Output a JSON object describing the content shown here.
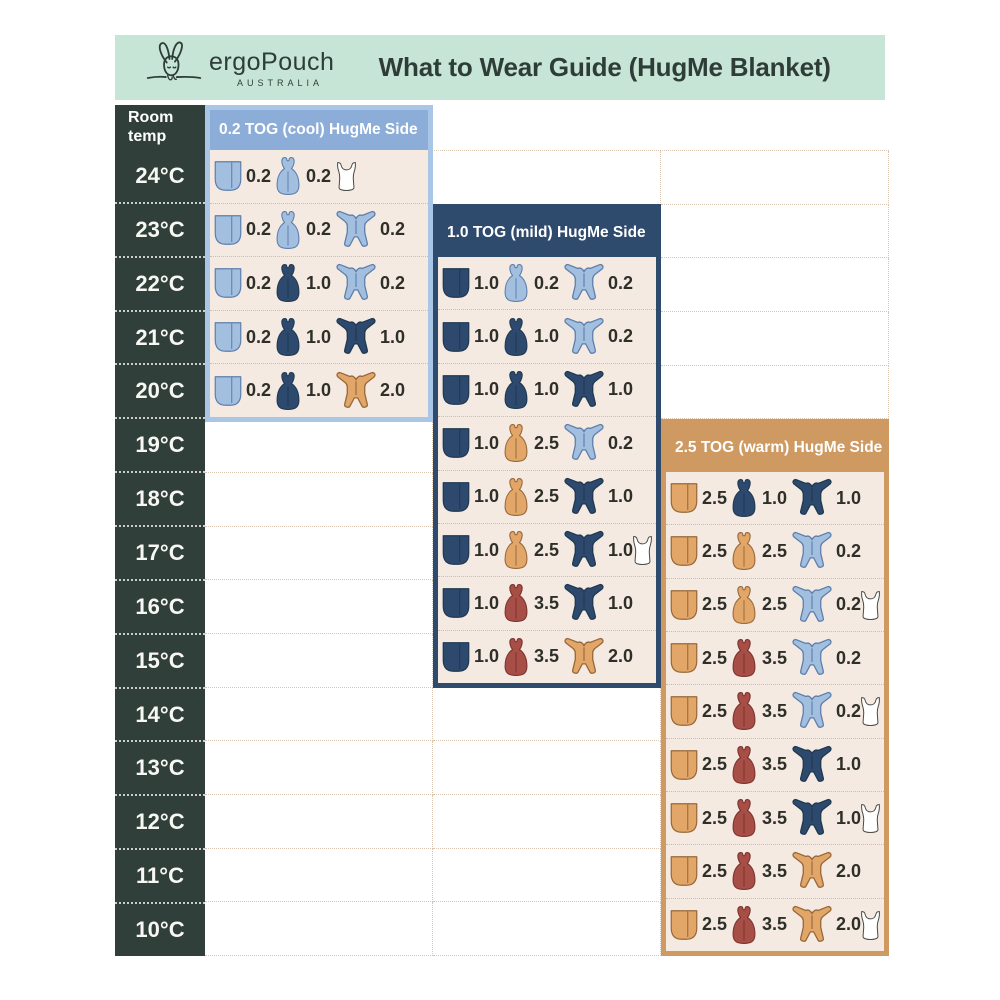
{
  "brand": {
    "name": "ergoPouch",
    "country": "AUSTRALIA"
  },
  "colors": {
    "mint_header_bg": "#c7e5d6",
    "ink": "#2e3d38",
    "column_bg": "#313f3a",
    "panel_body_bg": "#f5eae1",
    "tog_text": "#2f2f2a",
    "garments": {
      "lightblue": {
        "fill": "#a3bfe0",
        "stroke": "#5d7fac"
      },
      "navy": {
        "fill": "#2d4a6e",
        "stroke": "#203850"
      },
      "tan": {
        "fill": "#e2a668",
        "stroke": "#97683a"
      },
      "red": {
        "fill": "#a74e47",
        "stroke": "#7c332e"
      },
      "white": {
        "fill": "#ffffff",
        "stroke": "#4b4b45"
      }
    }
  },
  "chart_data": {
    "type": "table",
    "title": "What to Wear Guide (HugMe Blanket)",
    "row_header": "Room temp",
    "temps": [
      "24°C",
      "23°C",
      "22°C",
      "21°C",
      "20°C",
      "19°C",
      "18°C",
      "17°C",
      "16°C",
      "15°C",
      "14°C",
      "13°C",
      "12°C",
      "11°C",
      "10°C"
    ],
    "panels": [
      {
        "key": "cool",
        "title": "0.2 TOG (cool) HugMe Side",
        "border_color": "#a9c6e7",
        "header_bg": "#8cadd8",
        "rows": [
          {
            "temp": "24°C",
            "items": [
              [
                "blanket",
                "lightblue",
                "0.2"
              ],
              [
                "sleepbag",
                "lightblue",
                "0.2"
              ],
              [
                "singlet",
                "white",
                ""
              ]
            ]
          },
          {
            "temp": "23°C",
            "items": [
              [
                "blanket",
                "lightblue",
                "0.2"
              ],
              [
                "sleepbag",
                "lightblue",
                "0.2"
              ],
              [
                "onesie",
                "lightblue",
                "0.2"
              ]
            ]
          },
          {
            "temp": "22°C",
            "items": [
              [
                "blanket",
                "lightblue",
                "0.2"
              ],
              [
                "sleepbag",
                "navy",
                "1.0"
              ],
              [
                "onesie",
                "lightblue",
                "0.2"
              ]
            ]
          },
          {
            "temp": "21°C",
            "items": [
              [
                "blanket",
                "lightblue",
                "0.2"
              ],
              [
                "sleepbag",
                "navy",
                "1.0"
              ],
              [
                "onesie",
                "navy",
                "1.0"
              ]
            ]
          },
          {
            "temp": "20°C",
            "items": [
              [
                "blanket",
                "lightblue",
                "0.2"
              ],
              [
                "sleepbag",
                "navy",
                "1.0"
              ],
              [
                "onesie",
                "tan",
                "2.0"
              ]
            ]
          }
        ]
      },
      {
        "key": "mild",
        "title": "1.0 TOG (mild) HugMe Side",
        "border_color": "#2e4a6d",
        "header_bg": "#2e4a6d",
        "rows": [
          {
            "temp": "22°C",
            "items": [
              [
                "blanket",
                "navy",
                "1.0"
              ],
              [
                "sleepbag",
                "lightblue",
                "0.2"
              ],
              [
                "onesie",
                "lightblue",
                "0.2"
              ]
            ]
          },
          {
            "temp": "21°C",
            "items": [
              [
                "blanket",
                "navy",
                "1.0"
              ],
              [
                "sleepbag",
                "navy",
                "1.0"
              ],
              [
                "onesie",
                "lightblue",
                "0.2"
              ]
            ]
          },
          {
            "temp": "20°C",
            "items": [
              [
                "blanket",
                "navy",
                "1.0"
              ],
              [
                "sleepbag",
                "navy",
                "1.0"
              ],
              [
                "onesie",
                "navy",
                "1.0"
              ]
            ]
          },
          {
            "temp": "19°C",
            "items": [
              [
                "blanket",
                "navy",
                "1.0"
              ],
              [
                "sleepbag",
                "tan",
                "2.5"
              ],
              [
                "onesie",
                "lightblue",
                "0.2"
              ]
            ]
          },
          {
            "temp": "18°C",
            "items": [
              [
                "blanket",
                "navy",
                "1.0"
              ],
              [
                "sleepbag",
                "tan",
                "2.5"
              ],
              [
                "onesie",
                "navy",
                "1.0"
              ]
            ]
          },
          {
            "temp": "17°C",
            "items": [
              [
                "blanket",
                "navy",
                "1.0"
              ],
              [
                "sleepbag",
                "tan",
                "2.5"
              ],
              [
                "onesie",
                "navy",
                "1.0"
              ],
              [
                "singlet",
                "white",
                ""
              ]
            ]
          },
          {
            "temp": "16°C",
            "items": [
              [
                "blanket",
                "navy",
                "1.0"
              ],
              [
                "sleepbag",
                "red",
                "3.5"
              ],
              [
                "onesie",
                "navy",
                "1.0"
              ]
            ]
          },
          {
            "temp": "15°C",
            "items": [
              [
                "blanket",
                "navy",
                "1.0"
              ],
              [
                "sleepbag",
                "red",
                "3.5"
              ],
              [
                "onesie",
                "tan",
                "2.0"
              ]
            ]
          }
        ]
      },
      {
        "key": "warm",
        "title": "2.5 TOG (warm) HugMe Side",
        "border_color": "#cf9a62",
        "header_bg": "#cf9a62",
        "rows": [
          {
            "temp": "18°C",
            "items": [
              [
                "blanket",
                "tan",
                "2.5"
              ],
              [
                "sleepbag",
                "navy",
                "1.0"
              ],
              [
                "onesie",
                "navy",
                "1.0"
              ]
            ]
          },
          {
            "temp": "17°C",
            "items": [
              [
                "blanket",
                "tan",
                "2.5"
              ],
              [
                "sleepbag",
                "tan",
                "2.5"
              ],
              [
                "onesie",
                "lightblue",
                "0.2"
              ]
            ]
          },
          {
            "temp": "16°C",
            "items": [
              [
                "blanket",
                "tan",
                "2.5"
              ],
              [
                "sleepbag",
                "tan",
                "2.5"
              ],
              [
                "onesie",
                "lightblue",
                "0.2"
              ],
              [
                "singlet",
                "white",
                ""
              ]
            ]
          },
          {
            "temp": "15°C",
            "items": [
              [
                "blanket",
                "tan",
                "2.5"
              ],
              [
                "sleepbag",
                "red",
                "3.5"
              ],
              [
                "onesie",
                "lightblue",
                "0.2"
              ]
            ]
          },
          {
            "temp": "14°C",
            "items": [
              [
                "blanket",
                "tan",
                "2.5"
              ],
              [
                "sleepbag",
                "red",
                "3.5"
              ],
              [
                "onesie",
                "lightblue",
                "0.2"
              ],
              [
                "singlet",
                "white",
                ""
              ]
            ]
          },
          {
            "temp": "13°C",
            "items": [
              [
                "blanket",
                "tan",
                "2.5"
              ],
              [
                "sleepbag",
                "red",
                "3.5"
              ],
              [
                "onesie",
                "navy",
                "1.0"
              ]
            ]
          },
          {
            "temp": "12°C",
            "items": [
              [
                "blanket",
                "tan",
                "2.5"
              ],
              [
                "sleepbag",
                "red",
                "3.5"
              ],
              [
                "onesie",
                "navy",
                "1.0"
              ],
              [
                "singlet",
                "white",
                ""
              ]
            ]
          },
          {
            "temp": "11°C",
            "items": [
              [
                "blanket",
                "tan",
                "2.5"
              ],
              [
                "sleepbag",
                "red",
                "3.5"
              ],
              [
                "onesie",
                "tan",
                "2.0"
              ]
            ]
          },
          {
            "temp": "10°C",
            "items": [
              [
                "blanket",
                "tan",
                "2.5"
              ],
              [
                "sleepbag",
                "red",
                "3.5"
              ],
              [
                "onesie",
                "tan",
                "2.0"
              ],
              [
                "singlet",
                "white",
                ""
              ]
            ]
          }
        ]
      }
    ]
  }
}
